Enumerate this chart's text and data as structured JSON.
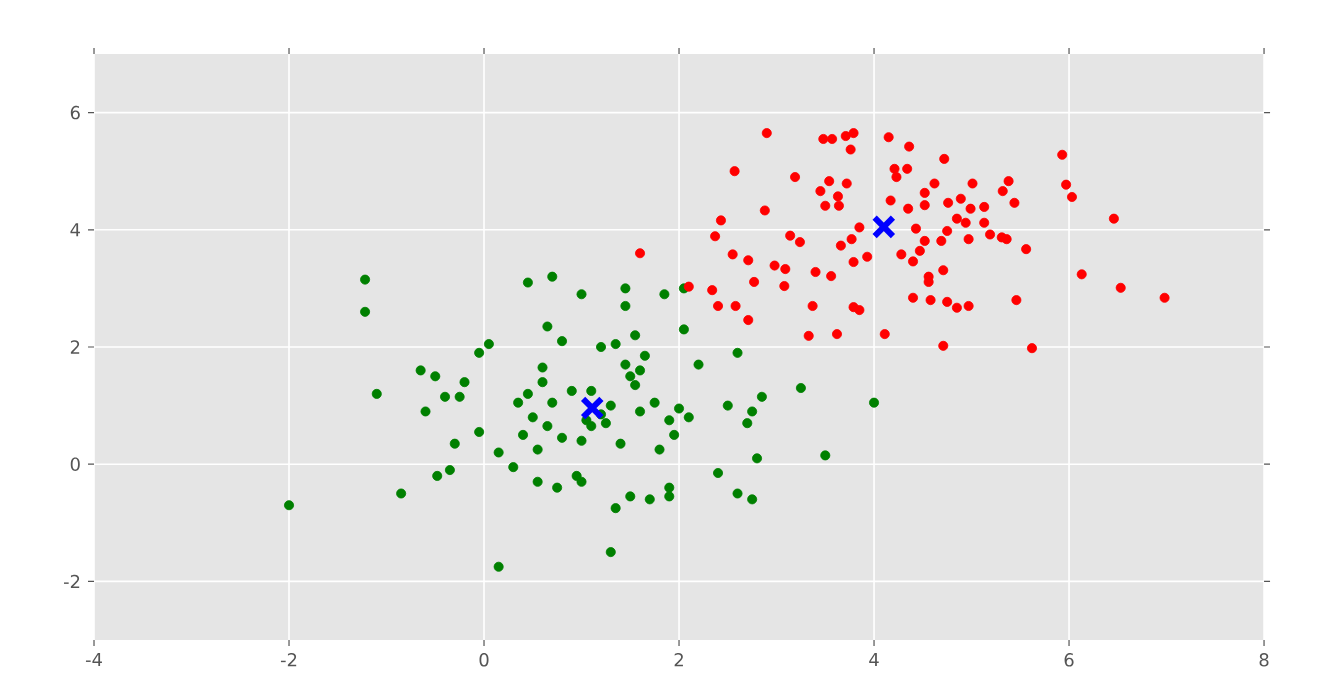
{
  "chart_data": {
    "type": "scatter",
    "xlim": [
      -4,
      8
    ],
    "ylim": [
      -3,
      7
    ],
    "xticks": [
      -4,
      -2,
      0,
      2,
      4,
      6,
      8
    ],
    "yticks": [
      -2,
      0,
      2,
      4,
      6
    ],
    "grid": true,
    "series": [
      {
        "color": "#008000",
        "marker": "circle",
        "x": [
          -2.0,
          -1.22,
          -1.22,
          -1.1,
          -0.85,
          -0.65,
          -0.6,
          -0.5,
          -0.48,
          -0.4,
          -0.35,
          -0.3,
          -0.25,
          -0.2,
          -0.05,
          -0.05,
          0.05,
          0.15,
          0.15,
          0.3,
          0.35,
          0.4,
          0.45,
          0.45,
          0.5,
          0.55,
          0.55,
          0.6,
          0.6,
          0.65,
          0.65,
          0.7,
          0.7,
          0.75,
          0.8,
          0.8,
          0.9,
          0.95,
          1.0,
          1.0,
          1.0,
          1.05,
          1.1,
          1.1,
          1.2,
          1.2,
          1.25,
          1.3,
          1.3,
          1.35,
          1.35,
          1.4,
          1.45,
          1.45,
          1.45,
          1.5,
          1.5,
          1.55,
          1.55,
          1.6,
          1.6,
          1.65,
          1.7,
          1.75,
          1.8,
          1.85,
          1.9,
          1.9,
          1.9,
          1.95,
          2.0,
          2.05,
          2.05,
          2.1,
          2.2,
          2.4,
          2.5,
          2.6,
          2.6,
          2.7,
          2.75,
          2.75,
          2.8,
          2.85,
          3.25,
          3.5,
          4.0
        ],
        "values": [
          -0.7,
          3.15,
          2.6,
          1.2,
          -0.5,
          1.6,
          0.9,
          1.5,
          -0.2,
          1.15,
          -0.1,
          0.35,
          1.15,
          1.4,
          0.55,
          1.9,
          2.05,
          0.2,
          -1.75,
          -0.05,
          1.05,
          0.5,
          3.1,
          1.2,
          0.8,
          -0.3,
          0.25,
          1.4,
          1.65,
          2.35,
          0.65,
          3.2,
          1.05,
          -0.4,
          2.1,
          0.45,
          1.25,
          -0.2,
          -0.3,
          2.9,
          0.4,
          0.75,
          0.65,
          1.25,
          0.85,
          2.0,
          0.7,
          1.0,
          -1.5,
          2.05,
          -0.75,
          0.35,
          2.7,
          3.0,
          1.7,
          1.5,
          -0.55,
          2.2,
          1.35,
          1.6,
          0.9,
          1.85,
          -0.6,
          1.05,
          0.25,
          2.9,
          0.75,
          -0.4,
          -0.55,
          0.5,
          0.95,
          3.0,
          2.3,
          0.8,
          1.7,
          -0.15,
          1.0,
          1.9,
          -0.5,
          0.7,
          0.9,
          -0.6,
          0.1,
          1.15,
          1.3,
          0.15,
          1.05
        ]
      },
      {
        "color": "#ff0000",
        "marker": "circle",
        "x": [
          1.6,
          2.1,
          2.34,
          2.37,
          2.4,
          2.43,
          2.55,
          2.57,
          2.58,
          2.71,
          2.71,
          2.77,
          2.88,
          2.9,
          2.98,
          3.08,
          3.09,
          3.14,
          3.19,
          3.24,
          3.33,
          3.37,
          3.4,
          3.45,
          3.48,
          3.5,
          3.54,
          3.56,
          3.57,
          3.62,
          3.63,
          3.64,
          3.66,
          3.71,
          3.72,
          3.76,
          3.77,
          3.79,
          3.79,
          3.79,
          3.85,
          3.85,
          3.93,
          4.11,
          4.15,
          4.17,
          4.21,
          4.23,
          4.28,
          4.34,
          4.35,
          4.36,
          4.4,
          4.4,
          4.43,
          4.47,
          4.52,
          4.52,
          4.52,
          4.56,
          4.56,
          4.58,
          4.62,
          4.69,
          4.71,
          4.71,
          4.72,
          4.75,
          4.75,
          4.76,
          4.85,
          4.85,
          4.89,
          4.94,
          4.97,
          4.97,
          4.99,
          5.01,
          5.13,
          5.13,
          5.19,
          5.31,
          5.32,
          5.36,
          5.38,
          5.44,
          5.46,
          5.56,
          5.62,
          5.93,
          5.97,
          6.03,
          6.13,
          6.46,
          6.53,
          6.98
        ],
        "values": [
          3.6,
          3.03,
          2.97,
          3.89,
          2.7,
          4.16,
          3.58,
          5.0,
          2.7,
          3.48,
          2.46,
          3.11,
          4.33,
          5.65,
          3.39,
          3.04,
          3.33,
          3.9,
          4.9,
          3.79,
          2.19,
          2.7,
          3.28,
          4.66,
          5.55,
          4.41,
          4.83,
          3.21,
          5.55,
          2.22,
          4.57,
          4.41,
          3.73,
          5.6,
          4.79,
          5.37,
          3.84,
          5.65,
          3.45,
          2.68,
          4.04,
          2.63,
          3.54,
          2.22,
          5.58,
          4.5,
          5.04,
          4.9,
          3.58,
          5.04,
          4.36,
          5.42,
          3.46,
          2.84,
          4.02,
          3.64,
          4.63,
          3.81,
          4.42,
          3.2,
          3.11,
          2.8,
          4.79,
          3.81,
          3.31,
          2.02,
          5.21,
          3.98,
          2.77,
          4.46,
          4.19,
          2.67,
          4.53,
          4.12,
          3.84,
          2.7,
          4.36,
          4.79,
          4.39,
          4.12,
          3.92,
          3.87,
          4.66,
          3.84,
          4.83,
          4.46,
          2.8,
          3.67,
          1.98,
          5.28,
          4.77,
          4.56,
          3.24,
          4.19,
          3.01,
          2.84
        ]
      },
      {
        "color": "#0000ff",
        "marker": "cross",
        "x": [
          1.11,
          4.1
        ],
        "values": [
          0.96,
          4.05
        ]
      }
    ]
  }
}
